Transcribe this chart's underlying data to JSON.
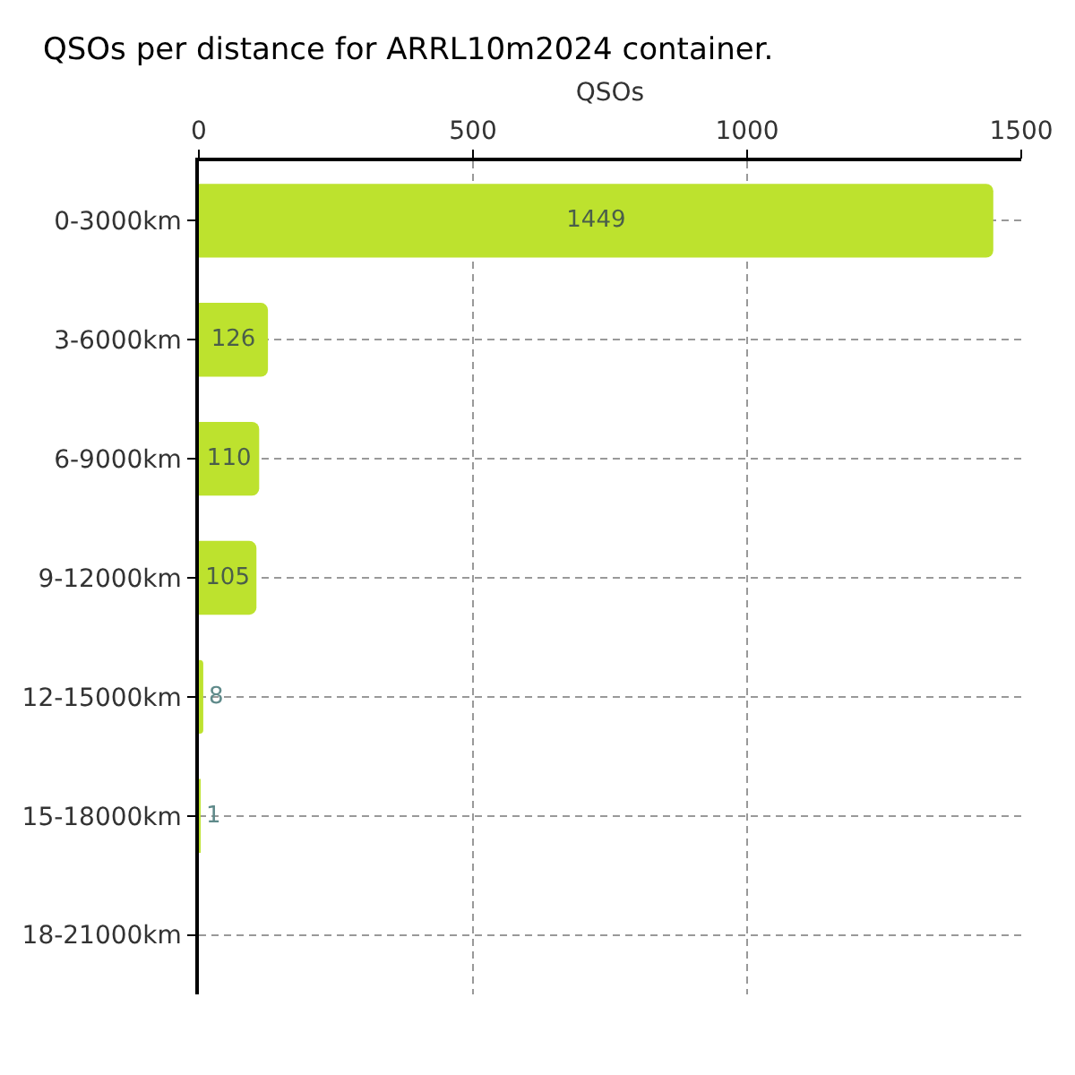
{
  "chart_data": {
    "type": "bar",
    "orientation": "horizontal",
    "title": "QSOs per distance for ARRL10m2024 container.",
    "xlabel": "QSOs",
    "categories": [
      "0-3000km",
      "3-6000km",
      "6-9000km",
      "9-12000km",
      "12-15000km",
      "15-18000km",
      "18-21000km"
    ],
    "values": [
      1449,
      126,
      110,
      105,
      8,
      1,
      0
    ],
    "value_labels": [
      "1449",
      "126",
      "110",
      "105",
      "8",
      "1",
      null
    ],
    "color": "#bde22e",
    "xlim": [
      0,
      1500
    ],
    "xticks": [
      0,
      500,
      1000,
      1500
    ],
    "grid": true
  }
}
